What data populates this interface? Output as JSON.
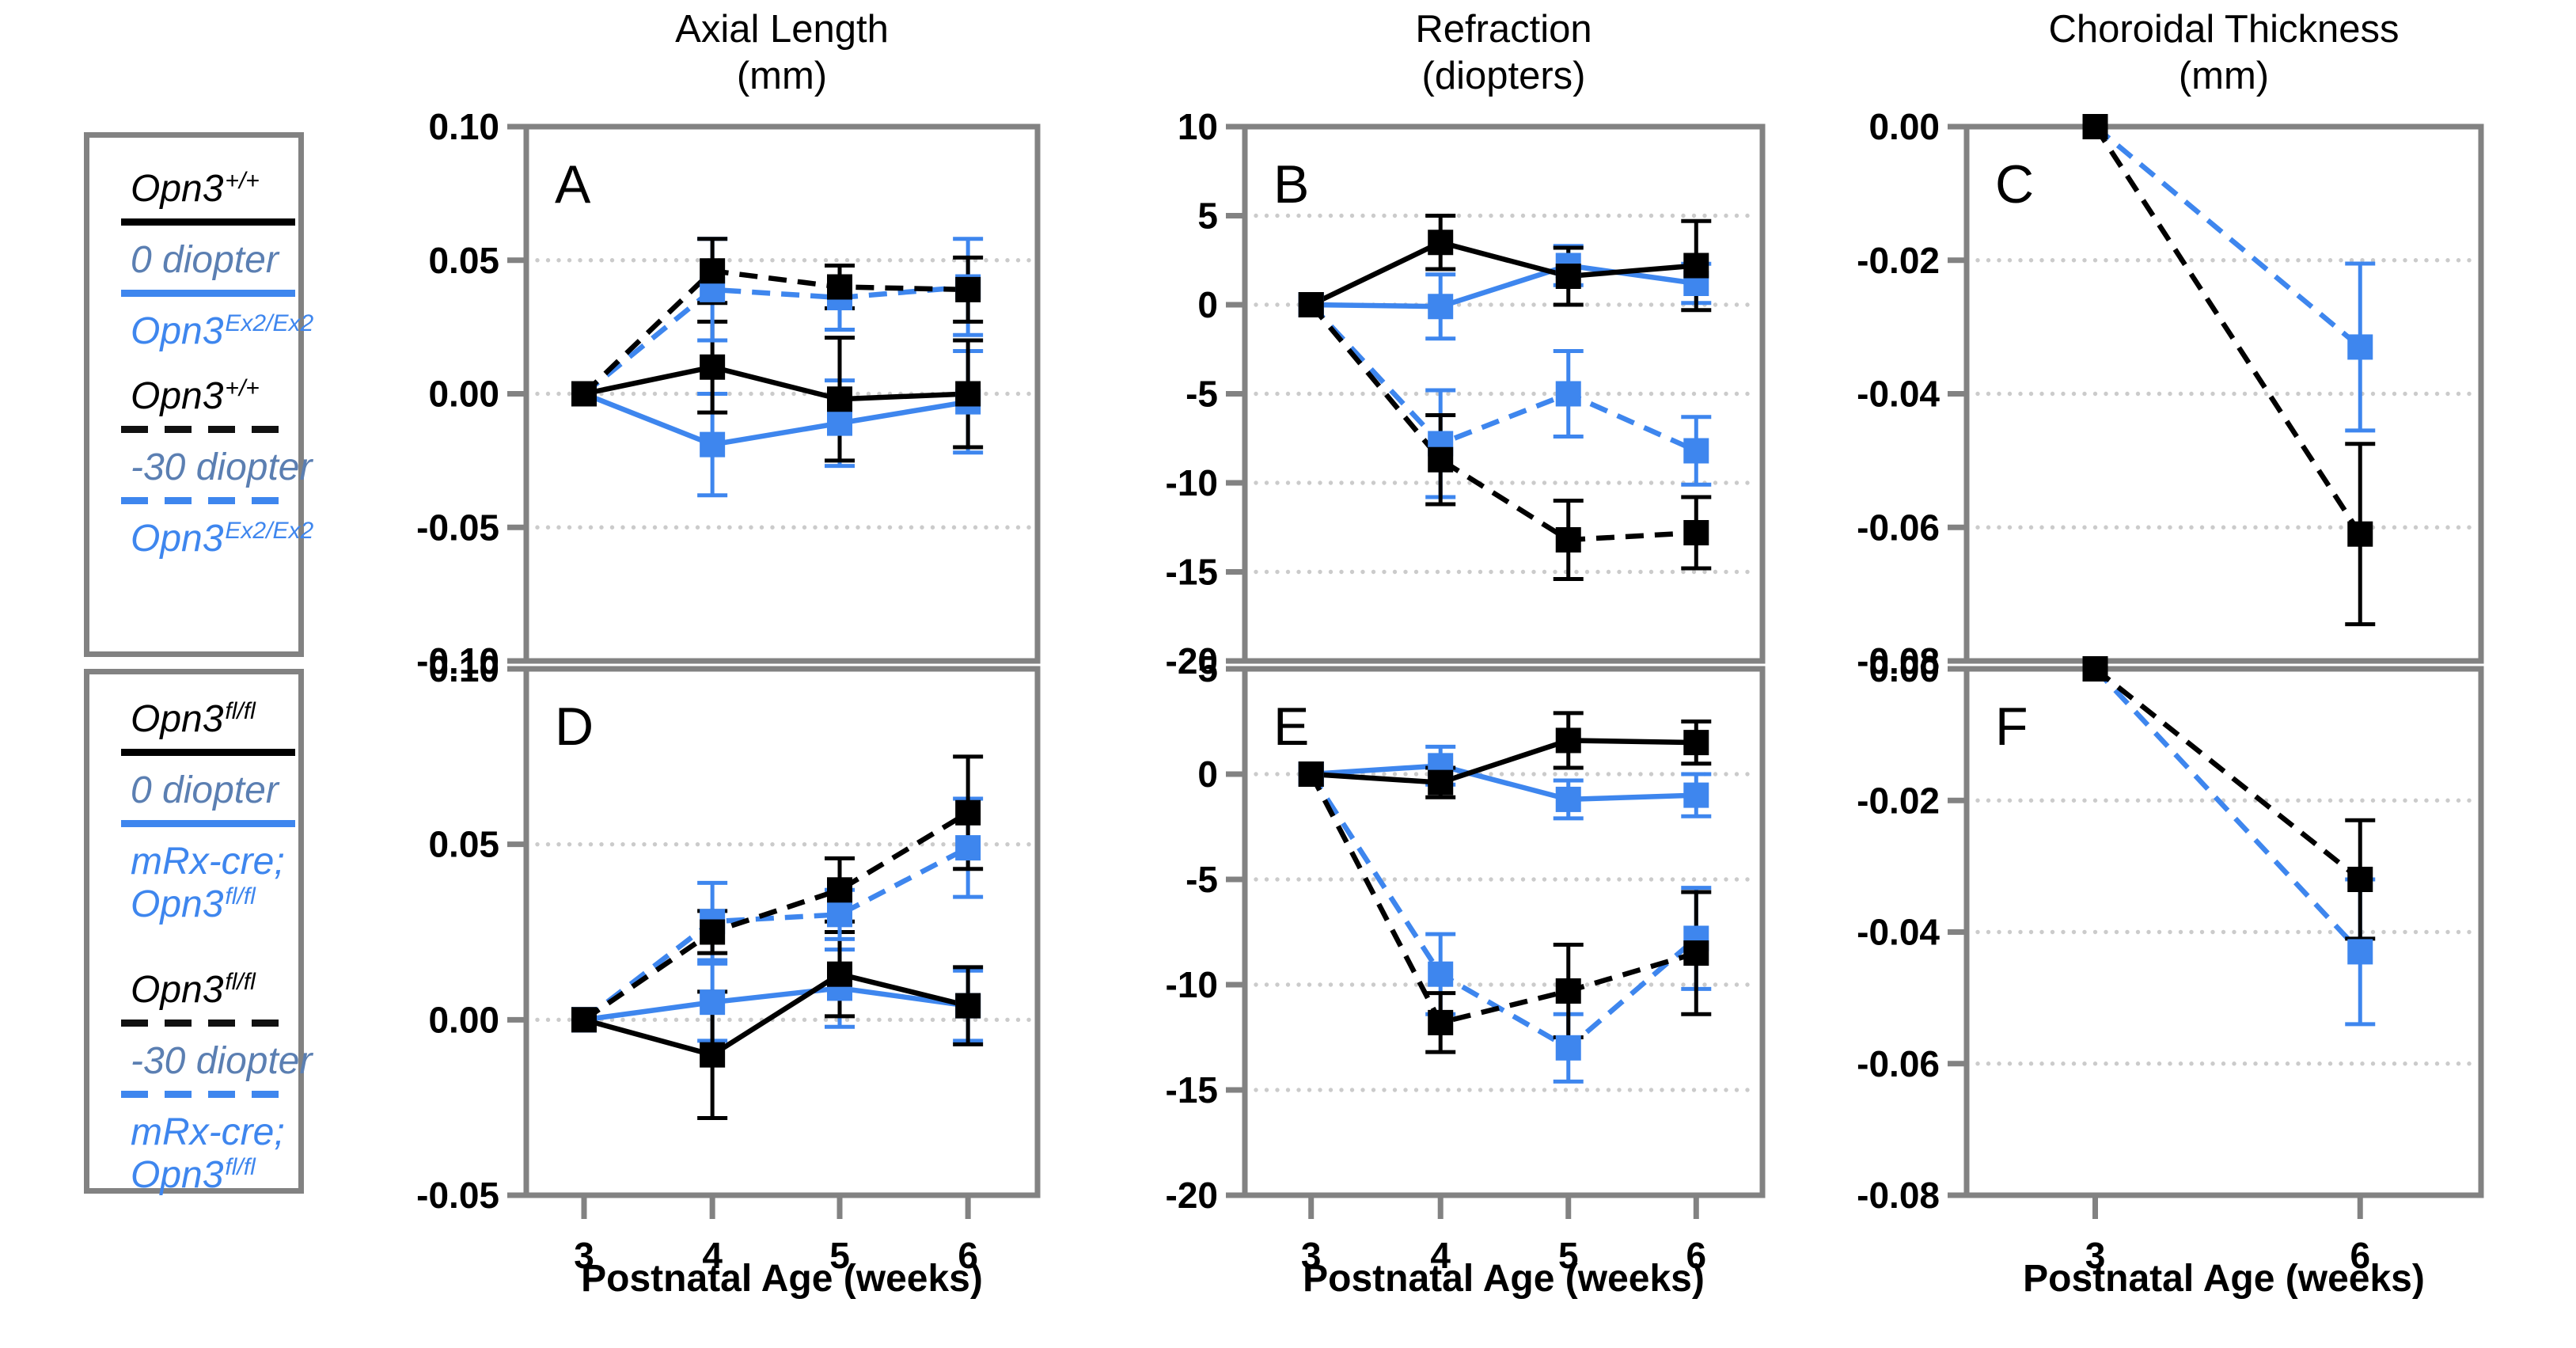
{
  "columns": [
    {
      "id": "axial-length",
      "line1": "Axial Length",
      "line2": "(mm)"
    },
    {
      "id": "refraction",
      "line1": "Refraction",
      "line2": "(diopters)"
    },
    {
      "id": "choroidal-thickness",
      "line1": "Choroidal Thickness",
      "line2": "(mm)"
    }
  ],
  "x_axis_title": "Postnatal Age (weeks)",
  "colors": {
    "black": "#000000",
    "blue": "#3e86ee",
    "steel_blue": "#5b7fb2",
    "border_gray": "#828282",
    "grid_gray": "#cbcbcb"
  },
  "legend": {
    "boxes": [
      {
        "id": "legend-wildtype",
        "items": [
          {
            "text": "Opn3",
            "sup": "+/+",
            "color": "black",
            "rule": "solid-black"
          },
          {
            "text": "0 diopter",
            "sup": null,
            "color": "steel",
            "rule": "solid-blue"
          },
          {
            "text": "Opn3",
            "sup": "Ex2/Ex2",
            "color": "blue",
            "rule": null
          },
          {
            "text": "Opn3",
            "sup": "+/+",
            "color": "black",
            "rule": "dashed-black"
          },
          {
            "text": "-30 diopter",
            "sup": null,
            "color": "steel",
            "rule": "dashed-blue"
          },
          {
            "text": "Opn3",
            "sup": "Ex2/Ex2",
            "color": "blue",
            "rule": null
          }
        ]
      },
      {
        "id": "legend-floxed",
        "items": [
          {
            "text": "Opn3",
            "sup": "fl/fl",
            "color": "black",
            "rule": "solid-black"
          },
          {
            "text": "0 diopter",
            "sup": null,
            "color": "steel",
            "rule": "solid-blue"
          },
          {
            "text": "mRx-cre;",
            "sup": null,
            "text2": "Opn3",
            "sup2": "fl/fl",
            "color": "blue",
            "rule": null
          },
          {
            "text": "Opn3",
            "sup": "fl/fl",
            "color": "black",
            "rule": "dashed-black"
          },
          {
            "text": "-30 diopter",
            "sup": null,
            "color": "steel",
            "rule": "dashed-blue"
          },
          {
            "text": "mRx-cre;",
            "sup": null,
            "text2": "Opn3",
            "sup2": "fl/fl",
            "color": "blue",
            "rule": null
          }
        ]
      }
    ]
  },
  "chart_data": [
    {
      "panel": "A",
      "type": "line",
      "metric": "Axial Length (mm)",
      "x": [
        3,
        4,
        5,
        6
      ],
      "xlabel": "Postnatal Age (weeks)",
      "ylim": [
        -0.1,
        0.1
      ],
      "yticks": [
        {
          "v": 0.1,
          "label": "0.10"
        },
        {
          "v": 0.05,
          "label": "0.05"
        },
        {
          "v": 0.0,
          "label": "0.00"
        },
        {
          "v": -0.05,
          "label": "-0.05"
        },
        {
          "v": -0.1,
          "label": "-0.10"
        }
      ],
      "gridlines": [
        0.05,
        0,
        -0.05
      ],
      "series": [
        {
          "name": "Opn3Ex2/Ex2 0 diopter",
          "color": "blue",
          "line": "solid",
          "values": [
            0,
            -0.019,
            -0.011,
            -0.003
          ],
          "errors": [
            0,
            0.019,
            0.016,
            0.019
          ]
        },
        {
          "name": "Opn3+/+ 0 diopter",
          "color": "black",
          "line": "solid",
          "values": [
            0,
            0.01,
            -0.002,
            0.0
          ],
          "errors": [
            0,
            0.017,
            0.023,
            0.02
          ]
        },
        {
          "name": "Opn3Ex2/Ex2 -30 diopter",
          "color": "blue",
          "line": "dashed",
          "values": [
            0,
            0.039,
            0.036,
            0.04
          ],
          "errors": [
            0,
            0.019,
            0.012,
            0.018
          ]
        },
        {
          "name": "Opn3+/+ -30 diopter",
          "color": "black",
          "line": "dashed",
          "values": [
            0,
            0.046,
            0.04,
            0.039
          ],
          "errors": [
            0,
            0.012,
            0.008,
            0.012
          ]
        }
      ]
    },
    {
      "panel": "B",
      "type": "line",
      "metric": "Refraction (diopters)",
      "x": [
        3,
        4,
        5,
        6
      ],
      "xlabel": "Postnatal Age (weeks)",
      "ylim": [
        -20,
        10
      ],
      "yticks": [
        {
          "v": 10,
          "label": "10"
        },
        {
          "v": 5,
          "label": "5"
        },
        {
          "v": 0,
          "label": "0"
        },
        {
          "v": -5,
          "label": "-5"
        },
        {
          "v": -10,
          "label": "-10"
        },
        {
          "v": -15,
          "label": "-15"
        },
        {
          "v": -20,
          "label": "-20"
        }
      ],
      "gridlines": [
        5,
        0,
        -5,
        -10,
        -15
      ],
      "series": [
        {
          "name": "Opn3Ex2/Ex2 0 diopter",
          "color": "blue",
          "line": "solid",
          "values": [
            0,
            -0.1,
            2.2,
            1.2
          ],
          "errors": [
            0,
            1.8,
            1.1,
            1.1
          ]
        },
        {
          "name": "Opn3+/+ 0 diopter",
          "color": "black",
          "line": "solid",
          "values": [
            0,
            3.5,
            1.6,
            2.2
          ],
          "errors": [
            0,
            1.5,
            1.6,
            2.5
          ]
        },
        {
          "name": "Opn3Ex2/Ex2 -30 diopter",
          "color": "blue",
          "line": "dashed",
          "values": [
            0,
            -7.8,
            -5.0,
            -8.2
          ],
          "errors": [
            0,
            3.0,
            2.4,
            1.9
          ]
        },
        {
          "name": "Opn3+/+ -30 diopter",
          "color": "black",
          "line": "dashed",
          "values": [
            0,
            -8.7,
            -13.2,
            -12.8
          ],
          "errors": [
            0,
            2.5,
            2.2,
            2.0
          ]
        }
      ]
    },
    {
      "panel": "C",
      "type": "line",
      "metric": "Choroidal Thickness (mm)",
      "x": [
        3,
        6
      ],
      "xlabel": "Postnatal Age (weeks)",
      "ylim": [
        -0.08,
        0
      ],
      "yticks": [
        {
          "v": 0,
          "label": "0.00"
        },
        {
          "v": -0.02,
          "label": "-0.02"
        },
        {
          "v": -0.04,
          "label": "-0.04"
        },
        {
          "v": -0.06,
          "label": "-0.06"
        },
        {
          "v": -0.08,
          "label": "-0.08"
        }
      ],
      "gridlines": [
        -0.02,
        -0.04,
        -0.06
      ],
      "series": [
        {
          "name": "Opn3Ex2/Ex2 -30 diopter",
          "color": "blue",
          "line": "dashed",
          "values": [
            0,
            -0.033
          ],
          "errors": [
            0,
            0.0125
          ]
        },
        {
          "name": "Opn3+/+ -30 diopter",
          "color": "black",
          "line": "dashed",
          "values": [
            0,
            -0.061
          ],
          "errors": [
            0,
            0.0135
          ]
        }
      ]
    },
    {
      "panel": "D",
      "type": "line",
      "metric": "Axial Length (mm)",
      "x": [
        3,
        4,
        5,
        6
      ],
      "xlabel": "Postnatal Age (weeks)",
      "ylim": [
        -0.05,
        0.1
      ],
      "yticks": [
        {
          "v": 0.1,
          "label": "0.10"
        },
        {
          "v": 0.05,
          "label": "0.05"
        },
        {
          "v": 0.0,
          "label": "0.00"
        },
        {
          "v": -0.05,
          "label": "-0.05"
        }
      ],
      "gridlines": [
        0.05,
        0
      ],
      "series": [
        {
          "name": "mRx-cre;Opn3fl/fl 0 diopter",
          "color": "blue",
          "line": "solid",
          "values": [
            0,
            0.005,
            0.009,
            0.004
          ],
          "errors": [
            0,
            0.011,
            0.011,
            0.01
          ]
        },
        {
          "name": "Opn3fl/fl 0 diopter",
          "color": "black",
          "line": "solid",
          "values": [
            0,
            -0.01,
            0.013,
            0.004
          ],
          "errors": [
            0,
            0.018,
            0.012,
            0.011
          ]
        },
        {
          "name": "mRx-cre;Opn3fl/fl -30 diopter",
          "color": "blue",
          "line": "dashed",
          "values": [
            0,
            0.028,
            0.03,
            0.049
          ],
          "errors": [
            0,
            0.011,
            0.007,
            0.014
          ]
        },
        {
          "name": "Opn3fl/fl -30 diopter",
          "color": "black",
          "line": "dashed",
          "values": [
            0,
            0.025,
            0.037,
            0.059
          ],
          "errors": [
            0,
            0.006,
            0.009,
            0.016
          ]
        }
      ]
    },
    {
      "panel": "E",
      "type": "line",
      "metric": "Refraction (diopters)",
      "x": [
        3,
        4,
        5,
        6
      ],
      "xlabel": "Postnatal Age (weeks)",
      "ylim": [
        -20,
        5
      ],
      "yticks": [
        {
          "v": 5,
          "label": "5"
        },
        {
          "v": 0,
          "label": "0"
        },
        {
          "v": -5,
          "label": "-5"
        },
        {
          "v": -10,
          "label": "-10"
        },
        {
          "v": -15,
          "label": "-15"
        },
        {
          "v": -20,
          "label": "-20"
        }
      ],
      "gridlines": [
        0,
        -5,
        -10,
        -15
      ],
      "series": [
        {
          "name": "mRx-cre;Opn3fl/fl 0 diopter",
          "color": "blue",
          "line": "solid",
          "values": [
            0,
            0.4,
            -1.2,
            -1.0
          ],
          "errors": [
            0,
            0.9,
            0.9,
            1.0
          ]
        },
        {
          "name": "Opn3fl/fl 0 diopter",
          "color": "black",
          "line": "solid",
          "values": [
            0,
            -0.4,
            1.6,
            1.5
          ],
          "errors": [
            0,
            0.7,
            1.3,
            1.0
          ]
        },
        {
          "name": "mRx-cre;Opn3fl/fl -30 diopter",
          "color": "blue",
          "line": "dashed",
          "values": [
            0,
            -9.5,
            -13.0,
            -7.8
          ],
          "errors": [
            0,
            1.9,
            1.6,
            2.4
          ]
        },
        {
          "name": "Opn3fl/fl -30 diopter",
          "color": "black",
          "line": "dashed",
          "values": [
            0,
            -11.8,
            -10.3,
            -8.5
          ],
          "errors": [
            0,
            1.4,
            2.2,
            2.9
          ]
        }
      ]
    },
    {
      "panel": "F",
      "type": "line",
      "metric": "Choroidal Thickness (mm)",
      "x": [
        3,
        6
      ],
      "xlabel": "Postnatal Age (weeks)",
      "ylim": [
        -0.08,
        0
      ],
      "yticks": [
        {
          "v": 0,
          "label": "0.00"
        },
        {
          "v": -0.02,
          "label": "-0.02"
        },
        {
          "v": -0.04,
          "label": "-0.04"
        },
        {
          "v": -0.06,
          "label": "-0.06"
        },
        {
          "v": -0.08,
          "label": "-0.08"
        }
      ],
      "gridlines": [
        -0.02,
        -0.04,
        -0.06
      ],
      "series": [
        {
          "name": "mRx-cre;Opn3fl/fl -30 diopter",
          "color": "blue",
          "line": "dashed",
          "values": [
            0,
            -0.043
          ],
          "errors": [
            0,
            0.011
          ]
        },
        {
          "name": "Opn3fl/fl -30 diopter",
          "color": "black",
          "line": "dashed",
          "values": [
            0,
            -0.032
          ],
          "errors": [
            0,
            0.009
          ]
        }
      ]
    }
  ]
}
